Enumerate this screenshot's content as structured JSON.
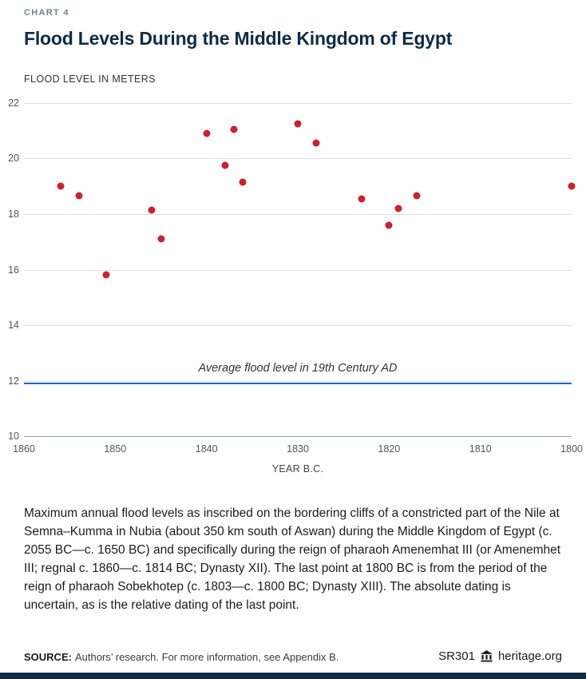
{
  "page": {
    "eyebrow": "CHART 4",
    "title": "Flood Levels During the Middle Kingdom of Egypt",
    "caption": "Maximum annual flood levels as inscribed on the bordering cliffs of a constricted part of the Nile at Semna–Kumma in Nubia (about 350 km south of Aswan) during the Middle Kingdom of Egypt (c. 2055 BC—c. 1650 BC) and specifically during the reign of pharaoh Amenemhat III (or Amenemhet III; regnal c. 1860—c. 1814 BC; Dynasty XII). The last point at 1800 BC is from the period of the reign of pharaoh Sobekhotep (c. 1803—c. 1800 BC; Dynasty XIII). The absolute dating is uncertain, as is the relative dating of the last point.",
    "footer": {
      "source_label": "SOURCE:",
      "source_text": "Authors’ research. For more information, see Appendix B.",
      "report_id": "SR301",
      "site": "heritage.org"
    }
  },
  "colors": {
    "brand_navy": "#0f2b46",
    "point_red": "#c8232f",
    "line_blue": "#2064c6"
  },
  "chart_data": {
    "type": "scatter",
    "title": "Flood Levels During the Middle Kingdom of Egypt",
    "ylabel": "FLOOD LEVEL IN METERS",
    "xlabel": "YEAR B.C.",
    "x_reversed": true,
    "xlim": [
      1860,
      1800
    ],
    "ylim": [
      10,
      22
    ],
    "xticks": [
      1860,
      1850,
      1840,
      1830,
      1820,
      1810,
      1800
    ],
    "yticks": [
      10,
      12,
      14,
      16,
      18,
      20,
      22
    ],
    "grid": "horizontal",
    "legend": "none",
    "point_color": "#c8232f",
    "reference_line": {
      "value": 11.9,
      "label": "Average flood level in 19th Century AD",
      "color": "#2064c6"
    },
    "points": [
      {
        "x": 1856,
        "y": 19.0
      },
      {
        "x": 1854,
        "y": 18.65
      },
      {
        "x": 1851,
        "y": 15.8
      },
      {
        "x": 1846,
        "y": 18.15
      },
      {
        "x": 1845,
        "y": 17.1
      },
      {
        "x": 1840,
        "y": 20.9
      },
      {
        "x": 1838,
        "y": 19.75
      },
      {
        "x": 1837,
        "y": 21.05
      },
      {
        "x": 1836,
        "y": 19.15
      },
      {
        "x": 1830,
        "y": 21.25
      },
      {
        "x": 1828,
        "y": 20.55
      },
      {
        "x": 1823,
        "y": 18.55
      },
      {
        "x": 1820,
        "y": 17.6
      },
      {
        "x": 1819,
        "y": 18.2
      },
      {
        "x": 1817,
        "y": 18.65
      },
      {
        "x": 1800,
        "y": 19.0
      }
    ]
  }
}
